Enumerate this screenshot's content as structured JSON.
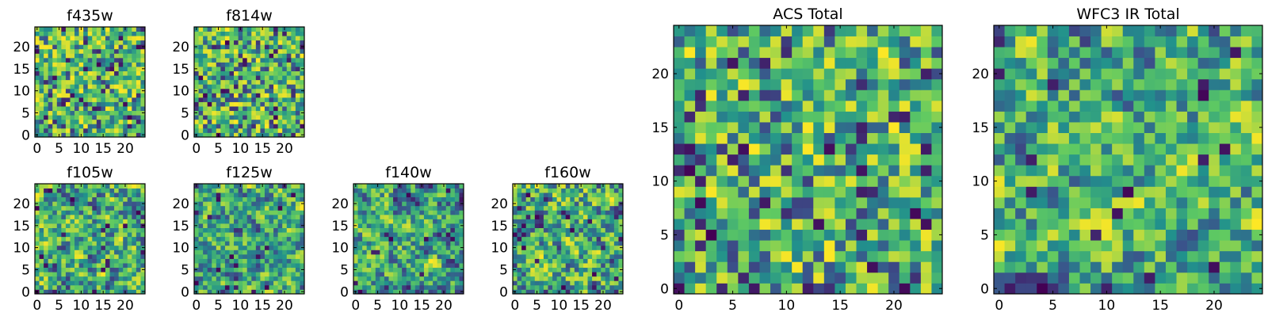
{
  "chart_data": [
    {
      "type": "heatmap",
      "title": "f435w",
      "grid_size": 25,
      "xlim": [
        0,
        24
      ],
      "ylim": [
        0,
        24
      ],
      "xticks": [
        "0",
        "5",
        "10",
        "15",
        "20"
      ],
      "yticks": [
        "0",
        "5",
        "10",
        "15",
        "20"
      ],
      "colormap": "viridis",
      "seed": 11,
      "smooth": 0,
      "darkness": 0.55
    },
    {
      "type": "heatmap",
      "title": "f814w",
      "grid_size": 25,
      "xlim": [
        0,
        24
      ],
      "ylim": [
        0,
        24
      ],
      "xticks": [
        "0",
        "5",
        "10",
        "15",
        "20"
      ],
      "yticks": [
        "0",
        "5",
        "10",
        "15",
        "20"
      ],
      "colormap": "viridis",
      "seed": 23,
      "smooth": 0,
      "darkness": 0.55
    },
    {
      "type": "heatmap",
      "title": "f105w",
      "grid_size": 25,
      "xlim": [
        0,
        24
      ],
      "ylim": [
        0,
        24
      ],
      "xticks": [
        "0",
        "5",
        "10",
        "15",
        "20"
      ],
      "yticks": [
        "0",
        "5",
        "10",
        "15",
        "20"
      ],
      "colormap": "viridis",
      "seed": 37,
      "smooth": 1,
      "darkness": 0.7
    },
    {
      "type": "heatmap",
      "title": "f125w",
      "grid_size": 25,
      "xlim": [
        0,
        24
      ],
      "ylim": [
        0,
        24
      ],
      "xticks": [
        "0",
        "5",
        "10",
        "15",
        "20"
      ],
      "yticks": [
        "0",
        "5",
        "10",
        "15",
        "20"
      ],
      "colormap": "viridis",
      "seed": 41,
      "smooth": 1,
      "darkness": 0.7
    },
    {
      "type": "heatmap",
      "title": "f140w",
      "grid_size": 25,
      "xlim": [
        0,
        24
      ],
      "ylim": [
        0,
        24
      ],
      "xticks": [
        "0",
        "5",
        "10",
        "15",
        "20"
      ],
      "yticks": [
        "0",
        "5",
        "10",
        "15",
        "20"
      ],
      "colormap": "viridis",
      "seed": 53,
      "smooth": 1,
      "darkness": 0.7
    },
    {
      "type": "heatmap",
      "title": "f160w",
      "grid_size": 25,
      "xlim": [
        0,
        24
      ],
      "ylim": [
        0,
        24
      ],
      "xticks": [
        "0",
        "5",
        "10",
        "15",
        "20"
      ],
      "yticks": [
        "0",
        "5",
        "10",
        "15",
        "20"
      ],
      "colormap": "viridis",
      "seed": 67,
      "smooth": 1,
      "darkness": 0.7
    },
    {
      "type": "heatmap",
      "title": "ACS Total",
      "grid_size": 25,
      "xlim": [
        0,
        24
      ],
      "ylim": [
        0,
        24
      ],
      "xticks": [
        "0",
        "5",
        "10",
        "15",
        "20"
      ],
      "yticks": [
        "0",
        "5",
        "10",
        "15",
        "20"
      ],
      "colormap": "viridis",
      "seed": 79,
      "smooth": 0,
      "darkness": 0.6
    },
    {
      "type": "heatmap",
      "title": "WFC3 IR Total",
      "grid_size": 25,
      "xlim": [
        0,
        24
      ],
      "ylim": [
        0,
        24
      ],
      "xticks": [
        "0",
        "5",
        "10",
        "15",
        "20"
      ],
      "yticks": [
        "0",
        "5",
        "10",
        "15",
        "20"
      ],
      "colormap": "viridis",
      "seed": 97,
      "smooth": 1,
      "darkness": 0.75
    }
  ],
  "colors": {
    "viridis": [
      "#440154",
      "#3b528b",
      "#21918c",
      "#5ec962",
      "#fde725"
    ],
    "axis": "#000000",
    "background": "#ffffff"
  }
}
